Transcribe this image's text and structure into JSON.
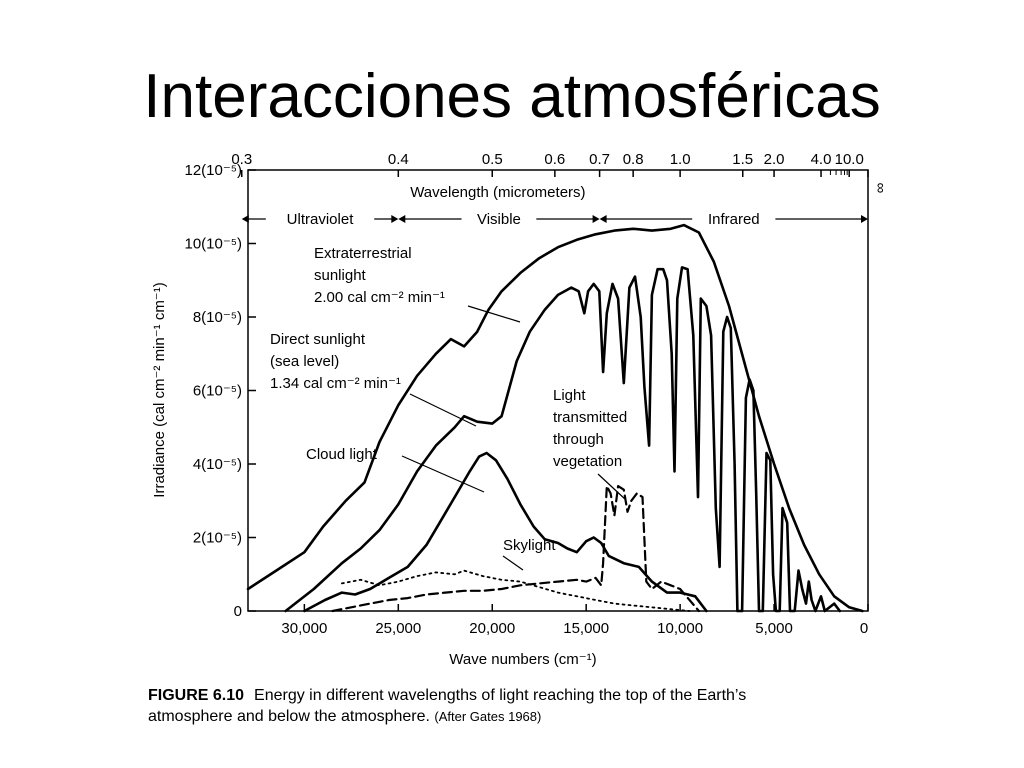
{
  "slide": {
    "title": "Interacciones atmosféricas"
  },
  "caption": {
    "figure_label": "FIGURE 6.10",
    "text_line1": "Energy in different wavelengths of light reaching the top of the Earth’s",
    "text_line2": "atmosphere and below the atmosphere.",
    "source": "(After Gates 1968)"
  },
  "colors": {
    "ink": "#000000",
    "background": "#ffffff"
  },
  "chart_data": {
    "type": "line",
    "xlabel": "Wave numbers (cm⁻¹)",
    "ylabel": "Irradiance (cal cm⁻² min⁻¹ cm⁻¹)",
    "top_axis_label": "Wavelength (micrometers)",
    "xlim_wavenumber": [
      0,
      33000
    ],
    "ylim": [
      0,
      12
    ],
    "y_unit_note": "×10⁻⁵",
    "grid": false,
    "x_ticks": [
      {
        "value": 0,
        "label": "0"
      },
      {
        "value": 30000,
        "label": "30,000"
      },
      {
        "value": 25000,
        "label": "25,000"
      },
      {
        "value": 20000,
        "label": "20,000"
      },
      {
        "value": 15000,
        "label": "15,000"
      },
      {
        "value": 10000,
        "label": "10,000"
      },
      {
        "value": 5000,
        "label": "5,000"
      }
    ],
    "y_ticks": [
      {
        "value": 0,
        "label": "0"
      },
      {
        "value": 2,
        "label": "2(10⁻⁵)"
      },
      {
        "value": 4,
        "label": "4(10⁻⁵)"
      },
      {
        "value": 6,
        "label": "6(10⁻⁵)"
      },
      {
        "value": 8,
        "label": "8(10⁻⁵)"
      },
      {
        "value": 10,
        "label": "10(10⁻⁵)"
      },
      {
        "value": 12,
        "label": "12(10⁻⁵)"
      }
    ],
    "top_ticks": [
      {
        "label": "0.3",
        "wavenumber": 33333
      },
      {
        "label": "0.4",
        "wavenumber": 25000
      },
      {
        "label": "0.5",
        "wavenumber": 20000
      },
      {
        "label": "0.6",
        "wavenumber": 16667
      },
      {
        "label": "0.7",
        "wavenumber": 14286
      },
      {
        "label": "0.8",
        "wavenumber": 12500
      },
      {
        "label": "1.0",
        "wavenumber": 10000
      },
      {
        "label": "1.5",
        "wavenumber": 6667
      },
      {
        "label": "2.0",
        "wavenumber": 5000
      },
      {
        "label": "4.0",
        "wavenumber": 2500
      },
      {
        "label": "10.0",
        "wavenumber": 1000
      },
      {
        "label": "∞",
        "wavenumber": 0
      }
    ],
    "regions": [
      {
        "label": "Ultraviolet",
        "from": 33333,
        "to": 25000
      },
      {
        "label": "Visible",
        "from": 25000,
        "to": 14286
      },
      {
        "label": "Infrared",
        "from": 14286,
        "to": 0
      }
    ],
    "annotations": [
      {
        "id": "extraterrestrial",
        "lines": [
          "Extraterrestrial",
          "sunlight",
          "2.00 cal cm⁻² min⁻¹"
        ]
      },
      {
        "id": "direct",
        "lines": [
          "Direct sunlight",
          "(sea level)",
          "1.34 cal cm⁻² min⁻¹"
        ]
      },
      {
        "id": "cloud",
        "lines": [
          "Cloud light"
        ]
      },
      {
        "id": "skylight",
        "lines": [
          "Skylight"
        ]
      },
      {
        "id": "vegetation",
        "lines": [
          "Light",
          "transmitted",
          "through",
          "vegetation"
        ]
      }
    ],
    "series": [
      {
        "id": "extraterrestrial",
        "style": "solid",
        "points": [
          [
            33000,
            0.6
          ],
          [
            31500,
            1.1
          ],
          [
            30000,
            1.6
          ],
          [
            29000,
            2.3
          ],
          [
            27800,
            3.0
          ],
          [
            26800,
            3.5
          ],
          [
            26000,
            4.6
          ],
          [
            25000,
            5.6
          ],
          [
            24000,
            6.4
          ],
          [
            23000,
            7.0
          ],
          [
            22200,
            7.4
          ],
          [
            21500,
            7.2
          ],
          [
            20800,
            7.6
          ],
          [
            20200,
            8.2
          ],
          [
            19500,
            8.7
          ],
          [
            18500,
            9.2
          ],
          [
            17500,
            9.6
          ],
          [
            16500,
            9.9
          ],
          [
            15500,
            10.1
          ],
          [
            14500,
            10.25
          ],
          [
            13500,
            10.35
          ],
          [
            12500,
            10.4
          ],
          [
            11500,
            10.35
          ],
          [
            10500,
            10.4
          ],
          [
            9800,
            10.5
          ],
          [
            9000,
            10.3
          ],
          [
            8200,
            9.5
          ],
          [
            7400,
            8.3
          ],
          [
            6600,
            6.8
          ],
          [
            5800,
            5.3
          ],
          [
            5000,
            4.0
          ],
          [
            4200,
            2.8
          ],
          [
            3400,
            1.8
          ],
          [
            2600,
            1.0
          ],
          [
            1800,
            0.4
          ],
          [
            1000,
            0.1
          ],
          [
            300,
            0
          ]
        ]
      },
      {
        "id": "direct-sunlight",
        "style": "solid",
        "points": [
          [
            31000,
            0
          ],
          [
            29500,
            0.6
          ],
          [
            28000,
            1.3
          ],
          [
            27000,
            1.7
          ],
          [
            26000,
            2.2
          ],
          [
            25000,
            2.9
          ],
          [
            24000,
            3.8
          ],
          [
            23000,
            4.5
          ],
          [
            22000,
            5.0
          ],
          [
            21500,
            5.3
          ],
          [
            20800,
            5.15
          ],
          [
            20000,
            5.1
          ],
          [
            19500,
            5.3
          ],
          [
            18700,
            6.8
          ],
          [
            18000,
            7.6
          ],
          [
            17200,
            8.2
          ],
          [
            16500,
            8.6
          ],
          [
            15800,
            8.8
          ],
          [
            15400,
            8.7
          ],
          [
            15100,
            8.1
          ],
          [
            14900,
            8.7
          ],
          [
            14600,
            8.9
          ],
          [
            14300,
            8.7
          ],
          [
            14100,
            6.5
          ],
          [
            13900,
            8.1
          ],
          [
            13600,
            8.9
          ],
          [
            13300,
            8.5
          ],
          [
            13000,
            6.2
          ],
          [
            12700,
            8.8
          ],
          [
            12400,
            9.1
          ],
          [
            12100,
            8.0
          ],
          [
            11900,
            6.1
          ],
          [
            11650,
            4.5
          ],
          [
            11500,
            8.6
          ],
          [
            11200,
            9.3
          ],
          [
            10900,
            9.3
          ],
          [
            10700,
            9.0
          ],
          [
            10450,
            7.0
          ],
          [
            10300,
            3.8
          ],
          [
            10150,
            8.5
          ],
          [
            9900,
            9.35
          ],
          [
            9600,
            9.3
          ],
          [
            9300,
            7.5
          ],
          [
            9050,
            3.1
          ],
          [
            8900,
            8.5
          ],
          [
            8600,
            8.3
          ],
          [
            8350,
            7.5
          ],
          [
            8100,
            2.8
          ],
          [
            7900,
            1.2
          ],
          [
            7700,
            7.6
          ],
          [
            7500,
            8.0
          ],
          [
            7300,
            7.7
          ],
          [
            7100,
            4.0
          ],
          [
            6950,
            0
          ],
          [
            6700,
            0
          ],
          [
            6500,
            5.8
          ],
          [
            6300,
            6.3
          ],
          [
            6100,
            6.0
          ],
          [
            5950,
            3.2
          ],
          [
            5800,
            0
          ],
          [
            5600,
            0
          ],
          [
            5400,
            4.3
          ],
          [
            5200,
            4.1
          ],
          [
            5050,
            1.0
          ],
          [
            4900,
            0
          ],
          [
            4700,
            0
          ],
          [
            4550,
            2.8
          ],
          [
            4300,
            2.4
          ],
          [
            4150,
            0
          ],
          [
            3900,
            0
          ],
          [
            3700,
            1.1
          ],
          [
            3500,
            0.6
          ],
          [
            3300,
            0.2
          ],
          [
            3150,
            0.8
          ],
          [
            3000,
            0.3
          ],
          [
            2800,
            0
          ],
          [
            2500,
            0.4
          ],
          [
            2300,
            0
          ],
          [
            1800,
            0.2
          ],
          [
            1500,
            0
          ]
        ]
      },
      {
        "id": "cloud-light",
        "style": "solid",
        "points": [
          [
            30000,
            0
          ],
          [
            28900,
            0.3
          ],
          [
            28000,
            0.5
          ],
          [
            27300,
            0.45
          ],
          [
            26500,
            0.6
          ],
          [
            25500,
            0.9
          ],
          [
            24500,
            1.2
          ],
          [
            23500,
            1.8
          ],
          [
            22800,
            2.4
          ],
          [
            22000,
            3.1
          ],
          [
            21200,
            3.8
          ],
          [
            20700,
            4.2
          ],
          [
            20300,
            4.3
          ],
          [
            19800,
            4.1
          ],
          [
            19200,
            3.6
          ],
          [
            18500,
            2.9
          ],
          [
            17800,
            2.3
          ],
          [
            17200,
            1.95
          ],
          [
            16500,
            1.85
          ],
          [
            16000,
            1.7
          ],
          [
            15500,
            1.6
          ],
          [
            15000,
            1.9
          ],
          [
            14600,
            2.0
          ],
          [
            14200,
            1.85
          ],
          [
            13800,
            1.5
          ],
          [
            13000,
            1.3
          ],
          [
            12200,
            1.2
          ],
          [
            11500,
            0.8
          ],
          [
            10700,
            0.5
          ],
          [
            10000,
            0.5
          ],
          [
            9200,
            0.4
          ],
          [
            8600,
            0
          ]
        ]
      },
      {
        "id": "skylight",
        "style": "dotted",
        "points": [
          [
            28000,
            0.75
          ],
          [
            27000,
            0.85
          ],
          [
            26000,
            0.7
          ],
          [
            25000,
            0.8
          ],
          [
            24000,
            0.95
          ],
          [
            23000,
            1.05
          ],
          [
            22000,
            1.0
          ],
          [
            21500,
            1.1
          ],
          [
            20500,
            0.95
          ],
          [
            19500,
            0.85
          ],
          [
            18500,
            0.8
          ],
          [
            17500,
            0.65
          ],
          [
            16500,
            0.5
          ],
          [
            15500,
            0.4
          ],
          [
            14500,
            0.3
          ],
          [
            13500,
            0.2
          ],
          [
            12500,
            0.15
          ],
          [
            11500,
            0.1
          ],
          [
            10500,
            0.05
          ],
          [
            9500,
            0
          ]
        ]
      },
      {
        "id": "vegetation",
        "style": "dashed",
        "points": [
          [
            28500,
            0
          ],
          [
            27500,
            0.1
          ],
          [
            26500,
            0.2
          ],
          [
            25500,
            0.3
          ],
          [
            24500,
            0.35
          ],
          [
            23500,
            0.45
          ],
          [
            22500,
            0.5
          ],
          [
            21500,
            0.55
          ],
          [
            20500,
            0.55
          ],
          [
            19500,
            0.6
          ],
          [
            18500,
            0.7
          ],
          [
            17500,
            0.75
          ],
          [
            16500,
            0.8
          ],
          [
            15500,
            0.85
          ],
          [
            15000,
            0.8
          ],
          [
            14500,
            0.9
          ],
          [
            14200,
            0.7
          ],
          [
            14100,
            1.3
          ],
          [
            13900,
            3.4
          ],
          [
            13700,
            3.2
          ],
          [
            13500,
            2.6
          ],
          [
            13300,
            3.4
          ],
          [
            13000,
            3.3
          ],
          [
            12800,
            2.7
          ],
          [
            12600,
            3.0
          ],
          [
            12300,
            3.2
          ],
          [
            12000,
            3.1
          ],
          [
            11800,
            0.8
          ],
          [
            11500,
            0.6
          ],
          [
            11000,
            0.8
          ],
          [
            10500,
            0.7
          ],
          [
            10000,
            0.6
          ],
          [
            9500,
            0.3
          ],
          [
            9000,
            0
          ]
        ]
      }
    ]
  }
}
